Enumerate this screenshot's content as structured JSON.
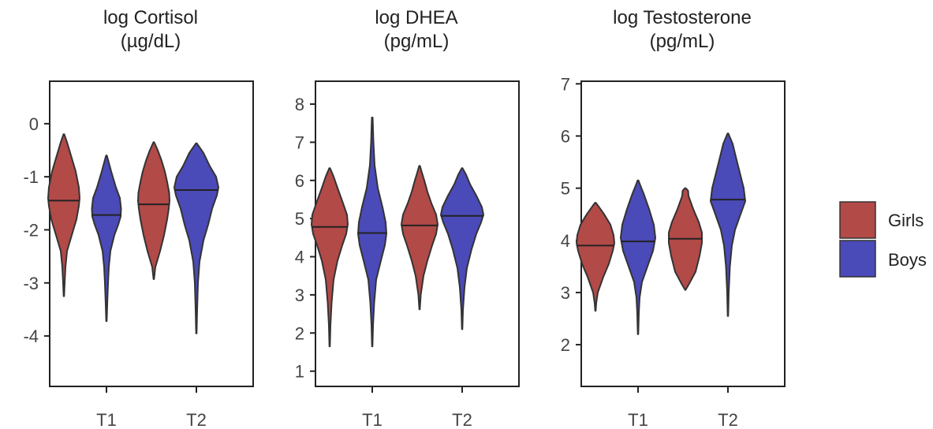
{
  "legend": {
    "placement": "right",
    "entries": [
      {
        "label": "Girls",
        "color": "#b24a48"
      },
      {
        "label": "Boys",
        "color": "#4a4ab8"
      }
    ]
  },
  "chart_data": [
    {
      "type": "violin",
      "title_line1": "log Cortisol",
      "title_line2": "(µg/dL)",
      "categories": [
        "T1",
        "T2"
      ],
      "ylim": [
        -4.95,
        0.8
      ],
      "yticks": [
        0,
        -1,
        -2,
        -3,
        -4
      ],
      "ytick_labels": [
        "0",
        "-1",
        "-2",
        "-3",
        "-4"
      ],
      "series": [
        {
          "name": "Girls",
          "color": "#b24a48",
          "violins": [
            {
              "min": -3.25,
              "max": -0.2,
              "median": -1.45,
              "profile": [
                [
                  -3.25,
                  0.3
                ],
                [
                  -3.0,
                  1.0
                ],
                [
                  -2.7,
                  2.0
                ],
                [
                  -2.4,
                  4.0
                ],
                [
                  -2.1,
                  10.0
                ],
                [
                  -1.8,
                  16.0
                ],
                [
                  -1.55,
                  19.0
                ],
                [
                  -1.4,
                  20.0
                ],
                [
                  -1.2,
                  19.0
                ],
                [
                  -0.9,
                  15.0
                ],
                [
                  -0.6,
                  9.0
                ],
                [
                  -0.35,
                  4.0
                ],
                [
                  -0.2,
                  0.5
                ]
              ]
            },
            {
              "min": -2.93,
              "max": -0.35,
              "median": -1.52,
              "profile": [
                [
                  -2.93,
                  0.3
                ],
                [
                  -2.7,
                  2.0
                ],
                [
                  -2.4,
                  8.0
                ],
                [
                  -2.1,
                  13.0
                ],
                [
                  -1.8,
                  17.0
                ],
                [
                  -1.6,
                  19.0
                ],
                [
                  -1.45,
                  20.0
                ],
                [
                  -1.3,
                  19.5
                ],
                [
                  -1.1,
                  17.0
                ],
                [
                  -0.9,
                  14.0
                ],
                [
                  -0.7,
                  10.0
                ],
                [
                  -0.5,
                  5.0
                ],
                [
                  -0.35,
                  0.5
                ]
              ]
            }
          ]
        },
        {
          "name": "Boys",
          "color": "#4a4ab8",
          "violins": [
            {
              "min": -3.72,
              "max": -0.6,
              "median": -1.72,
              "profile": [
                [
                  -3.72,
                  0.3
                ],
                [
                  -3.4,
                  1.0
                ],
                [
                  -3.0,
                  2.0
                ],
                [
                  -2.7,
                  3.0
                ],
                [
                  -2.4,
                  5.0
                ],
                [
                  -2.1,
                  10.0
                ],
                [
                  -1.9,
                  15.0
                ],
                [
                  -1.75,
                  18.0
                ],
                [
                  -1.6,
                  18.5
                ],
                [
                  -1.4,
                  17.0
                ],
                [
                  -1.2,
                  12.0
                ],
                [
                  -0.9,
                  6.0
                ],
                [
                  -0.6,
                  0.5
                ]
              ]
            },
            {
              "min": -3.95,
              "max": -0.37,
              "median": -1.25,
              "profile": [
                [
                  -3.95,
                  0.3
                ],
                [
                  -3.5,
                  1.0
                ],
                [
                  -3.0,
                  2.0
                ],
                [
                  -2.6,
                  4.0
                ],
                [
                  -2.2,
                  9.0
                ],
                [
                  -1.9,
                  15.0
                ],
                [
                  -1.6,
                  20.0
                ],
                [
                  -1.35,
                  26.0
                ],
                [
                  -1.2,
                  28.0
                ],
                [
                  -1.0,
                  25.0
                ],
                [
                  -0.8,
                  17.0
                ],
                [
                  -0.55,
                  9.0
                ],
                [
                  -0.37,
                  0.5
                ]
              ]
            }
          ]
        }
      ]
    },
    {
      "type": "violin",
      "title_line1": "log DHEA",
      "title_line2": "(pg/mL)",
      "categories": [
        "T1",
        "T2"
      ],
      "ylim": [
        0.6,
        8.6
      ],
      "yticks": [
        1,
        2,
        3,
        4,
        5,
        6,
        7,
        8
      ],
      "ytick_labels": [
        "1",
        "2",
        "3",
        "4",
        "5",
        "6",
        "7",
        "8"
      ],
      "series": [
        {
          "name": "Girls",
          "color": "#b24a48",
          "violins": [
            {
              "min": 1.65,
              "max": 6.32,
              "median": 4.78,
              "profile": [
                [
                  1.65,
                  0.3
                ],
                [
                  2.2,
                  1.0
                ],
                [
                  2.8,
                  2.5
                ],
                [
                  3.4,
                  5.0
                ],
                [
                  3.9,
                  10.0
                ],
                [
                  4.3,
                  16.0
                ],
                [
                  4.6,
                  21.0
                ],
                [
                  4.85,
                  23.0
                ],
                [
                  5.1,
                  22.0
                ],
                [
                  5.4,
                  17.0
                ],
                [
                  5.8,
                  10.0
                ],
                [
                  6.1,
                  5.0
                ],
                [
                  6.32,
                  0.5
                ]
              ]
            },
            {
              "min": 2.62,
              "max": 6.38,
              "median": 4.82,
              "profile": [
                [
                  2.62,
                  0.3
                ],
                [
                  3.0,
                  1.5
                ],
                [
                  3.5,
                  5.0
                ],
                [
                  3.9,
                  10.0
                ],
                [
                  4.3,
                  16.0
                ],
                [
                  4.6,
                  21.0
                ],
                [
                  4.85,
                  23.0
                ],
                [
                  5.1,
                  21.0
                ],
                [
                  5.4,
                  15.0
                ],
                [
                  5.7,
                  10.0
                ],
                [
                  6.0,
                  6.0
                ],
                [
                  6.2,
                  3.0
                ],
                [
                  6.38,
                  0.5
                ]
              ]
            }
          ]
        },
        {
          "name": "Boys",
          "color": "#4a4ab8",
          "violins": [
            {
              "min": 1.65,
              "max": 7.65,
              "median": 4.62,
              "profile": [
                [
                  1.65,
                  0.3
                ],
                [
                  2.2,
                  1.0
                ],
                [
                  2.8,
                  2.5
                ],
                [
                  3.4,
                  5.0
                ],
                [
                  3.9,
                  11.0
                ],
                [
                  4.3,
                  16.0
                ],
                [
                  4.6,
                  18.0
                ],
                [
                  4.9,
                  17.0
                ],
                [
                  5.3,
                  13.0
                ],
                [
                  5.8,
                  7.0
                ],
                [
                  6.4,
                  3.0
                ],
                [
                  7.0,
                  1.5
                ],
                [
                  7.65,
                  0.5
                ]
              ]
            },
            {
              "min": 2.1,
              "max": 6.32,
              "median": 5.07,
              "profile": [
                [
                  2.1,
                  0.3
                ],
                [
                  2.6,
                  1.0
                ],
                [
                  3.2,
                  3.0
                ],
                [
                  3.7,
                  6.0
                ],
                [
                  4.2,
                  12.0
                ],
                [
                  4.6,
                  18.0
                ],
                [
                  4.9,
                  24.0
                ],
                [
                  5.1,
                  27.0
                ],
                [
                  5.3,
                  25.0
                ],
                [
                  5.6,
                  18.0
                ],
                [
                  5.9,
                  10.0
                ],
                [
                  6.15,
                  5.0
                ],
                [
                  6.32,
                  0.5
                ]
              ]
            }
          ]
        }
      ]
    },
    {
      "type": "violin",
      "title_line1": "log Testosterone",
      "title_line2": "(pg/mL)",
      "categories": [
        "T1",
        "T2"
      ],
      "ylim": [
        1.2,
        7.05
      ],
      "yticks": [
        2,
        3,
        4,
        5,
        6,
        7
      ],
      "ytick_labels": [
        "2",
        "3",
        "4",
        "5",
        "6",
        "7"
      ],
      "series": [
        {
          "name": "Girls",
          "color": "#b24a48",
          "violins": [
            {
              "min": 2.65,
              "max": 4.72,
              "median": 3.9,
              "profile": [
                [
                  2.65,
                  0.3
                ],
                [
                  2.8,
                  1.0
                ],
                [
                  3.0,
                  3.0
                ],
                [
                  3.3,
                  10.0
                ],
                [
                  3.55,
                  17.0
                ],
                [
                  3.8,
                  22.0
                ],
                [
                  3.95,
                  24.0
                ],
                [
                  4.1,
                  23.0
                ],
                [
                  4.3,
                  19.0
                ],
                [
                  4.5,
                  11.0
                ],
                [
                  4.65,
                  4.0
                ],
                [
                  4.72,
                  0.5
                ]
              ]
            },
            {
              "min": 3.05,
              "max": 5.0,
              "median": 4.03,
              "profile": [
                [
                  3.05,
                  0.3
                ],
                [
                  3.2,
                  6.0
                ],
                [
                  3.4,
                  13.0
                ],
                [
                  3.7,
                  18.0
                ],
                [
                  3.95,
                  21.0
                ],
                [
                  4.15,
                  21.0
                ],
                [
                  4.35,
                  17.0
                ],
                [
                  4.6,
                  10.0
                ],
                [
                  4.85,
                  4.0
                ],
                [
                  4.95,
                  3.5
                ],
                [
                  5.0,
                  0.5
                ]
              ]
            }
          ]
        },
        {
          "name": "Boys",
          "color": "#4a4ab8",
          "violins": [
            {
              "min": 2.2,
              "max": 5.15,
              "median": 3.98,
              "profile": [
                [
                  2.2,
                  0.3
                ],
                [
                  2.6,
                  1.0
                ],
                [
                  2.9,
                  2.0
                ],
                [
                  3.2,
                  5.0
                ],
                [
                  3.5,
                  12.0
                ],
                [
                  3.8,
                  19.0
                ],
                [
                  4.05,
                  22.0
                ],
                [
                  4.3,
                  20.0
                ],
                [
                  4.6,
                  14.0
                ],
                [
                  4.9,
                  7.0
                ],
                [
                  5.05,
                  3.0
                ],
                [
                  5.15,
                  0.5
                ]
              ]
            },
            {
              "min": 2.55,
              "max": 6.05,
              "median": 4.78,
              "profile": [
                [
                  2.55,
                  0.3
                ],
                [
                  3.0,
                  1.0
                ],
                [
                  3.5,
                  2.5
                ],
                [
                  3.9,
                  5.0
                ],
                [
                  4.2,
                  9.0
                ],
                [
                  4.5,
                  16.0
                ],
                [
                  4.75,
                  22.0
                ],
                [
                  5.0,
                  20.0
                ],
                [
                  5.3,
                  15.0
                ],
                [
                  5.6,
                  10.0
                ],
                [
                  5.85,
                  6.0
                ],
                [
                  6.05,
                  0.5
                ]
              ]
            }
          ]
        }
      ]
    }
  ]
}
